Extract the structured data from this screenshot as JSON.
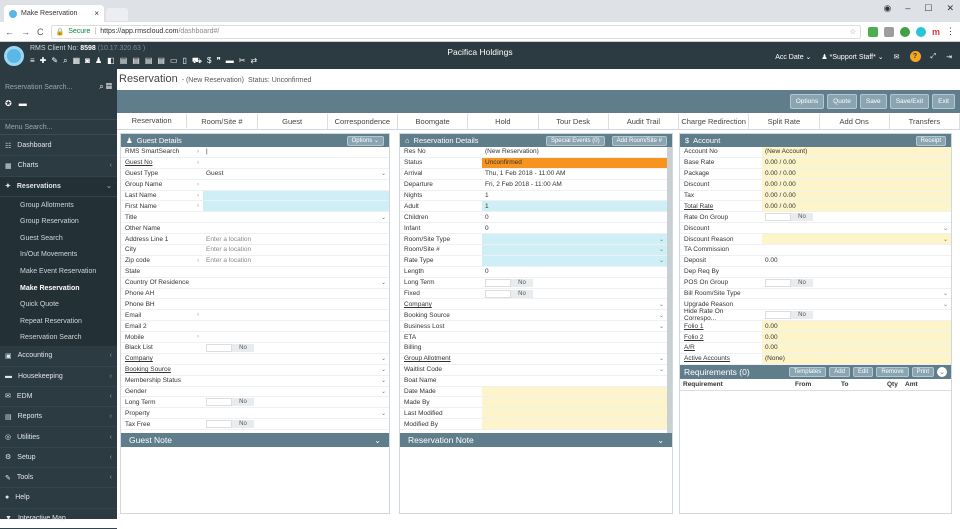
{
  "browser": {
    "tab_title": "Make Reservation",
    "secure_label": "Secure",
    "url_host": "https://app.rmscloud.com",
    "url_path": "/dashboard#/"
  },
  "topbar": {
    "client_label": "RMS Client No:",
    "client_no": "8598",
    "client_ip": "(10.17.320.63 )",
    "app_title": "Pacifica Holdings",
    "acc_date": "Acc Date",
    "user": "*Support Staff*"
  },
  "sidebar": {
    "reservation_search": "Reservation Search...",
    "menu_search": "Menu Search...",
    "items": [
      {
        "label": "Dashboard",
        "icon": "dashboard-icon",
        "glyph": "☷"
      },
      {
        "label": "Charts",
        "icon": "charts-icon",
        "glyph": "▦"
      },
      {
        "label": "Reservations",
        "icon": "reservations-icon",
        "glyph": "✦"
      }
    ],
    "sub_items": [
      "Group Allotments",
      "Group Reservation",
      "Guest Search",
      "In/Out Movements",
      "Make Event Reservation",
      "Make Reservation",
      "Quick Quote",
      "Repeat Reservation",
      "Reservation Search"
    ],
    "items_after": [
      {
        "label": "Accounting",
        "icon": "accounting-icon",
        "glyph": "▣"
      },
      {
        "label": "Housekeeping",
        "icon": "housekeeping-icon",
        "glyph": "▬"
      },
      {
        "label": "EDM",
        "icon": "edm-icon",
        "glyph": "✉"
      },
      {
        "label": "Reports",
        "icon": "reports-icon",
        "glyph": "▤"
      },
      {
        "label": "Utilities",
        "icon": "utilities-icon",
        "glyph": "◎"
      },
      {
        "label": "Setup",
        "icon": "setup-icon",
        "glyph": "⚙"
      },
      {
        "label": "Tools",
        "icon": "tools-icon",
        "glyph": "✎"
      },
      {
        "label": "Help",
        "icon": "help-icon",
        "glyph": "●"
      },
      {
        "label": "Interactive Map",
        "icon": "map-pin-icon",
        "glyph": "▼"
      }
    ]
  },
  "main": {
    "title": "Reservation",
    "subtitle": "- (New Reservation)",
    "status": "Status: Unconfirmed",
    "actions": [
      "Options",
      "Quote",
      "Save",
      "Save/Exit",
      "Exit"
    ],
    "tabs": [
      "Reservation",
      "Room/Site #",
      "Guest",
      "Correspondence",
      "Boomgate",
      "Hold",
      "Tour Desk",
      "Audit Trail",
      "Charge Redirection",
      "Split Rate",
      "Add Ons",
      "Transfers"
    ]
  },
  "guest": {
    "title": "Guest Details",
    "options_btn": "Options",
    "rows": [
      {
        "label": "RMS SmartSearch",
        "arrow": true,
        "value": "|",
        "style": "",
        "dd": false
      },
      {
        "label": "Guest No",
        "arrow": true,
        "value": "",
        "style": "",
        "dd": false,
        "u": true
      },
      {
        "label": "Guest Type",
        "arrow": false,
        "value": "Guest",
        "style": "",
        "dd": true
      },
      {
        "label": "Group Name",
        "arrow": true,
        "value": "",
        "style": "",
        "dd": false
      },
      {
        "label": "Last Name",
        "arrow": true,
        "value": "",
        "style": "blue",
        "dd": false
      },
      {
        "label": "First Name",
        "arrow": true,
        "value": "",
        "style": "blue",
        "dd": false
      },
      {
        "label": "Title",
        "arrow": false,
        "value": "",
        "style": "",
        "dd": true
      },
      {
        "label": "Other Name",
        "arrow": false,
        "value": "",
        "style": "",
        "dd": false
      },
      {
        "label": "Address Line 1",
        "arrow": false,
        "value": "Enter a location",
        "style": "ph",
        "dd": false
      },
      {
        "label": "City",
        "arrow": false,
        "value": "Enter a location",
        "style": "ph",
        "dd": false
      },
      {
        "label": "Zip code",
        "arrow": true,
        "value": "Enter a location",
        "style": "ph",
        "dd": false
      },
      {
        "label": "State",
        "arrow": false,
        "value": "",
        "style": "",
        "dd": false
      },
      {
        "label": "Country Of Residence",
        "arrow": false,
        "value": "",
        "style": "",
        "dd": true
      },
      {
        "label": "Phone AH",
        "arrow": false,
        "value": "",
        "style": "",
        "dd": false
      },
      {
        "label": "Phone BH",
        "arrow": false,
        "value": "",
        "style": "",
        "dd": false
      },
      {
        "label": "Email",
        "arrow": true,
        "value": "",
        "style": "",
        "dd": false
      },
      {
        "label": "Email 2",
        "arrow": false,
        "value": "",
        "style": "",
        "dd": false
      },
      {
        "label": "Mobile",
        "arrow": true,
        "value": "",
        "style": "",
        "dd": false
      },
      {
        "label": "Black List",
        "arrow": false,
        "value": "",
        "style": "tog",
        "dd": false
      },
      {
        "label": "Company",
        "arrow": false,
        "value": "",
        "style": "",
        "dd": true,
        "u": true
      },
      {
        "label": "Booking Source",
        "arrow": false,
        "value": "",
        "style": "",
        "dd": true,
        "u": true
      },
      {
        "label": "Membership Status",
        "arrow": false,
        "value": "",
        "style": "",
        "dd": true
      },
      {
        "label": "Gender",
        "arrow": false,
        "value": "",
        "style": "",
        "dd": true
      },
      {
        "label": "Long Term",
        "arrow": false,
        "value": "",
        "style": "tog",
        "dd": false
      },
      {
        "label": "Property",
        "arrow": false,
        "value": "",
        "style": "",
        "dd": true
      },
      {
        "label": "Tax Free",
        "arrow": false,
        "value": "",
        "style": "tog",
        "dd": false
      }
    ],
    "note": "Guest Note"
  },
  "resdetails": {
    "title": "Reservation Details",
    "special_events": "Special Events (0)",
    "add_room": "Add Room/Site #",
    "rows": [
      {
        "label": "Res No",
        "value": "(New Reservation)",
        "style": "",
        "dd": false
      },
      {
        "label": "Status",
        "value": "Unconfirmed",
        "style": "org",
        "dd": false
      },
      {
        "label": "Arrival",
        "value": "Thu, 1 Feb 2018 - 11:00 AM",
        "style": "",
        "dd": false
      },
      {
        "label": "Departure",
        "value": "Fri, 2 Feb 2018 - 11:00 AM",
        "style": "",
        "dd": false
      },
      {
        "label": "Nights",
        "value": "1",
        "style": "",
        "dd": false
      },
      {
        "label": "Adult",
        "value": "1",
        "style": "blue",
        "dd": false
      },
      {
        "label": "Children",
        "value": "0",
        "style": "",
        "dd": false
      },
      {
        "label": "Infant",
        "value": "0",
        "style": "",
        "dd": false
      },
      {
        "label": "Room/Site Type",
        "value": "",
        "style": "blue",
        "dd": true
      },
      {
        "label": "Room/Site #",
        "value": "",
        "style": "blue",
        "dd": true
      },
      {
        "label": "Rate Type",
        "value": "",
        "style": "blue",
        "dd": true
      },
      {
        "label": "Length",
        "value": "0",
        "style": "",
        "dd": false
      },
      {
        "label": "Long Term",
        "value": "",
        "style": "tog",
        "dd": false
      },
      {
        "label": "Fixed",
        "value": "",
        "style": "tog",
        "dd": false
      },
      {
        "label": "Company",
        "value": "",
        "style": "",
        "dd": true,
        "u": true
      },
      {
        "label": "Booking Source",
        "value": "",
        "style": "",
        "dd": true
      },
      {
        "label": "Business Lost",
        "value": "",
        "style": "",
        "dd": true
      },
      {
        "label": "ETA",
        "value": "",
        "style": "",
        "dd": false
      },
      {
        "label": "Billing",
        "value": "",
        "style": "",
        "dd": false
      },
      {
        "label": "Group Allotment",
        "value": "",
        "style": "",
        "dd": true,
        "u": true
      },
      {
        "label": "Waitlist Code",
        "value": "",
        "style": "",
        "dd": true
      },
      {
        "label": "Boat Name",
        "value": "",
        "style": "",
        "dd": false
      },
      {
        "label": "Date Made",
        "value": "",
        "style": "yel",
        "dd": false
      },
      {
        "label": "Made By",
        "value": "",
        "style": "yel",
        "dd": false
      },
      {
        "label": "Last Modified",
        "value": "",
        "style": "yel",
        "dd": false
      },
      {
        "label": "Modified By",
        "value": "",
        "style": "yel",
        "dd": false
      }
    ],
    "note": "Reservation Note"
  },
  "account": {
    "title": "Account",
    "receipt": "Receipt",
    "rows": [
      {
        "label": "Account No",
        "value": "(New Account)",
        "style": "yel",
        "dd": false
      },
      {
        "label": "Base Rate",
        "value": "0.00 / 0.00",
        "style": "yel",
        "dd": false
      },
      {
        "label": "Package",
        "value": "0.00 / 0.00",
        "style": "yel",
        "dd": false
      },
      {
        "label": "Discount",
        "value": "0.00 / 0.00",
        "style": "yel",
        "dd": false
      },
      {
        "label": "Tax",
        "value": "0.00 / 0.00",
        "style": "yel",
        "dd": false
      },
      {
        "label": "Total Rate",
        "value": "0.00 / 0.00",
        "style": "yel",
        "dd": false,
        "u": true
      },
      {
        "label": "Rate On Group",
        "value": "",
        "style": "tog",
        "dd": false
      },
      {
        "label": "Discount",
        "value": "",
        "style": "",
        "dd": true
      },
      {
        "label": "Discount Reason",
        "value": "",
        "style": "yel",
        "dd": true
      },
      {
        "label": "TA Commission",
        "value": "",
        "style": "",
        "dd": false
      },
      {
        "label": "Deposit",
        "value": "0.00",
        "style": "",
        "dd": false
      },
      {
        "label": "Dep Req By",
        "value": "",
        "style": "",
        "dd": false
      },
      {
        "label": "POS On Group",
        "value": "",
        "style": "tog",
        "dd": false
      },
      {
        "label": "Bill Room/Site Type",
        "value": "",
        "style": "",
        "dd": true
      },
      {
        "label": "Upgrade Reason",
        "value": "",
        "style": "",
        "dd": true
      },
      {
        "label": "Hide Rate On Correspo...",
        "value": "",
        "style": "tog",
        "dd": false
      },
      {
        "label": "Folio 1",
        "value": "0.00",
        "style": "yel",
        "dd": false,
        "u": true
      },
      {
        "label": "Folio 2",
        "value": "0.00",
        "style": "yel",
        "dd": false,
        "u": true
      },
      {
        "label": "A/R",
        "value": "0.00",
        "style": "yel",
        "dd": false,
        "u": true
      },
      {
        "label": "Active Accounts",
        "value": "(None)",
        "style": "yel",
        "dd": false,
        "u": true
      }
    ],
    "req_title": "Requirements (0)",
    "req_buttons": [
      "Templates",
      "Add",
      "Edit",
      "Remove",
      "Print"
    ],
    "req_cols": [
      "Requirement",
      "From",
      "To",
      "Qty",
      "Amt"
    ]
  },
  "toggle_no": "No"
}
